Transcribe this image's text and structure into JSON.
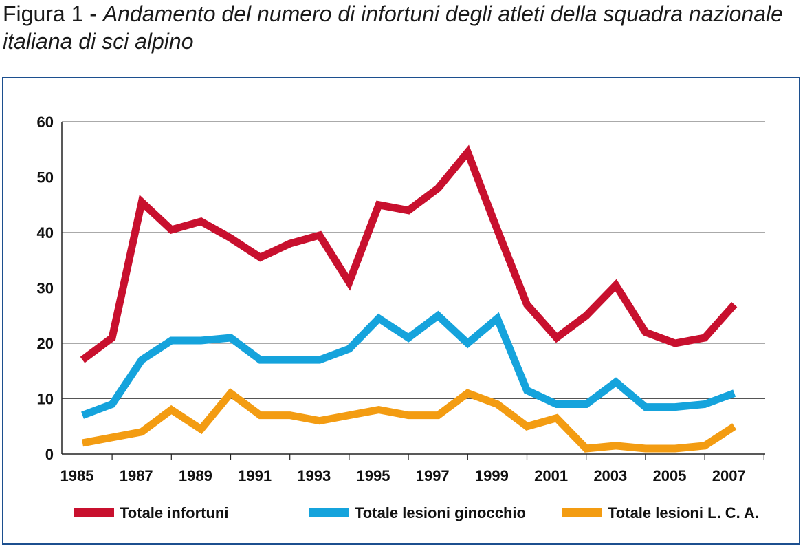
{
  "caption": {
    "figure_label": "Figura 1 - ",
    "title": "Andamento del numero di infortuni degli atleti della squadra nazionale italiana di sci alpino"
  },
  "chart_data": {
    "type": "line",
    "title": "Andamento del numero di infortuni degli atleti della squadra nazionale italiana di sci alpino",
    "xlabel": "",
    "ylabel": "",
    "ylim": [
      0,
      60
    ],
    "yticks": [
      0,
      10,
      20,
      30,
      40,
      50,
      60
    ],
    "x": [
      1985,
      1986,
      1987,
      1988,
      1989,
      1990,
      1991,
      1992,
      1993,
      1994,
      1995,
      1996,
      1997,
      1998,
      1999,
      2000,
      2001,
      2002,
      2003,
      2004,
      2005,
      2006,
      2007
    ],
    "xtick_labels": [
      "1985",
      "1987",
      "1989",
      "1991",
      "1993",
      "1995",
      "1997",
      "1999",
      "2001",
      "2003",
      "2005",
      "2007"
    ],
    "grid": true,
    "legend_position": "bottom",
    "series": [
      {
        "name": "Totale infortuni",
        "color": "#c8102e",
        "values": [
          17,
          21,
          45.5,
          40.5,
          42,
          39,
          35.5,
          38,
          39.5,
          31,
          45,
          44,
          48,
          54.5,
          40.5,
          27,
          21,
          25,
          30.5,
          22,
          20,
          21,
          27
        ]
      },
      {
        "name": "Totale lesioni ginocchio",
        "color": "#15a3dc",
        "values": [
          7,
          9,
          17,
          20.5,
          20.5,
          21,
          17,
          17,
          17,
          19,
          24.5,
          21,
          25,
          20,
          24.5,
          11.5,
          9,
          9,
          13,
          8.5,
          8.5,
          9,
          11
        ]
      },
      {
        "name": "Totale lesioni L. C. A.",
        "color": "#f39c12",
        "values": [
          2,
          3,
          4,
          8,
          4.5,
          11,
          7,
          7,
          6,
          7,
          8,
          7,
          7,
          11,
          9,
          5,
          6.5,
          1,
          1.5,
          1,
          1,
          1.5,
          5
        ]
      }
    ]
  }
}
